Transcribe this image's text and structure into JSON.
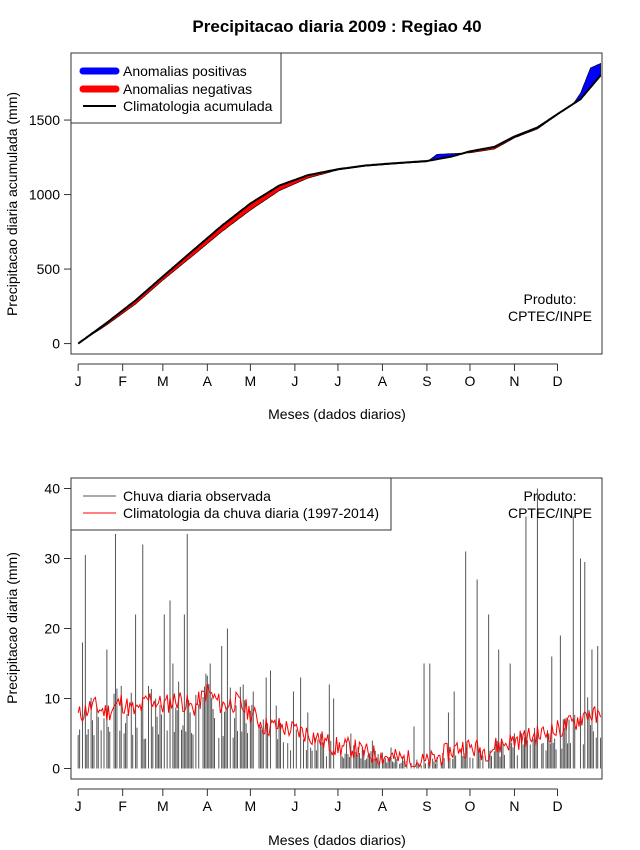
{
  "chart_data": [
    {
      "type": "area",
      "title": "Precipitacao diaria 2009 : Regiao 40",
      "xlabel": "Meses (dados diarios)",
      "ylabel": "Precipitacao diaria acumulada (mm)",
      "x_ticks": [
        "J",
        "F",
        "M",
        "A",
        "M",
        "J",
        "J",
        "A",
        "S",
        "O",
        "N",
        "D"
      ],
      "y_ticks": [
        0,
        500,
        1000,
        1500
      ],
      "ylim": [
        -70,
        1950
      ],
      "xlim_days": [
        -5,
        365
      ],
      "legend": [
        {
          "label": "Anomalias positivas",
          "color": "#0000ff"
        },
        {
          "label": "Anomalias negativas",
          "color": "#ff0000"
        },
        {
          "label": "Climatologia acumulada",
          "color": "#000000"
        }
      ],
      "annotation": [
        "Produto:",
        "CPTEC/INPE"
      ],
      "climatology_cumulative": {
        "day": [
          0,
          20,
          40,
          59,
          80,
          100,
          120,
          140,
          160,
          181,
          200,
          220,
          243,
          260,
          273,
          290,
          304,
          320,
          334,
          350,
          364
        ],
        "value": [
          0,
          140,
          290,
          450,
          625,
          790,
          940,
          1060,
          1130,
          1170,
          1195,
          1210,
          1225,
          1255,
          1290,
          1320,
          1390,
          1450,
          1540,
          1640,
          1800
        ]
      },
      "observed_cumulative": {
        "day": [
          0,
          20,
          40,
          59,
          80,
          100,
          120,
          140,
          160,
          181,
          200,
          220,
          243,
          250,
          260,
          273,
          290,
          304,
          320,
          334,
          345,
          350,
          357,
          364
        ],
        "value": [
          0,
          125,
          265,
          425,
          590,
          750,
          895,
          1025,
          1110,
          1165,
          1190,
          1205,
          1220,
          1270,
          1275,
          1280,
          1305,
          1380,
          1440,
          1535,
          1610,
          1680,
          1850,
          1880
        ]
      }
    },
    {
      "type": "bar",
      "xlabel": "Meses (dados diarios)",
      "ylabel": "Precipitacao diaria (mm)",
      "x_ticks": [
        "J",
        "F",
        "M",
        "A",
        "M",
        "J",
        "J",
        "A",
        "S",
        "O",
        "N",
        "D"
      ],
      "y_ticks": [
        0,
        10,
        20,
        30,
        40
      ],
      "ylim": [
        -1.5,
        41.5
      ],
      "xlim_days": [
        -5,
        365
      ],
      "legend": [
        {
          "label": "Chuva diaria observada",
          "color": "#555555"
        },
        {
          "label": "Climatologia da chuva diaria (1997-2014)",
          "color": "#ff0000"
        }
      ],
      "annotation": [
        "Produto:",
        "CPTEC/INPE"
      ],
      "observed_daily_peaks": {
        "day": [
          3,
          5,
          20,
          26,
          40,
          45,
          54,
          60,
          64,
          66,
          74,
          76,
          78,
          82,
          92,
          100,
          104,
          110,
          115,
          122,
          131,
          134,
          138,
          150,
          155,
          160,
          175,
          178,
          190,
          205,
          218,
          234,
          241,
          245,
          258,
          262,
          270,
          278,
          286,
          293,
          301,
          312,
          320,
          330,
          336,
          345,
          350,
          353,
          358,
          362
        ],
        "value": [
          18,
          30.5,
          17,
          33.5,
          22,
          32,
          10,
          22,
          24,
          15,
          22,
          33.5,
          8,
          10.5,
          15,
          17.5,
          20,
          9,
          12,
          11,
          13,
          14,
          9,
          11,
          13,
          8,
          12,
          10,
          5,
          4,
          3,
          6,
          15,
          15,
          8,
          11,
          31,
          27,
          22,
          17,
          15,
          36,
          40,
          16,
          19,
          36,
          30,
          29.5,
          17,
          17.5
        ]
      },
      "climatology_daily": {
        "day": [
          0,
          10,
          20,
          30,
          40,
          50,
          59,
          70,
          80,
          90,
          100,
          110,
          120,
          130,
          140,
          150,
          160,
          170,
          181,
          190,
          200,
          212,
          220,
          230,
          243,
          255,
          265,
          273,
          285,
          295,
          304,
          315,
          325,
          334,
          345,
          355,
          364
        ],
        "value": [
          7.5,
          9,
          8,
          9.5,
          8,
          10,
          9,
          10,
          8.5,
          11,
          9,
          9.5,
          8,
          6,
          6,
          5.5,
          5,
          4,
          3,
          3,
          2.2,
          1.8,
          1.5,
          1.2,
          0.8,
          2,
          3,
          3,
          2.5,
          3.5,
          4,
          4.5,
          5,
          5.5,
          6.5,
          8,
          7
        ]
      }
    }
  ]
}
